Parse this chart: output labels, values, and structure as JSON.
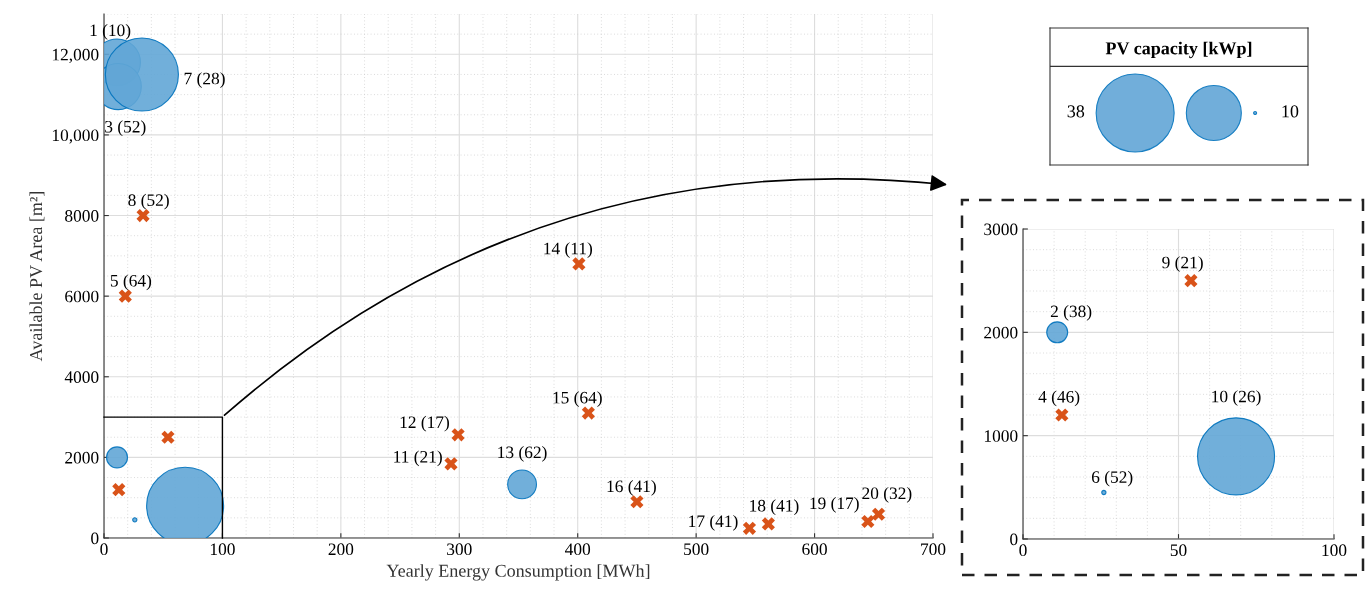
{
  "chart_data": [
    {
      "type": "bubble",
      "xlabel": "Yearly Energy Consumption [MWh]",
      "ylabel": "Available PV Area [m²]",
      "xlim": [
        0,
        700
      ],
      "xticks": [
        0,
        100,
        200,
        300,
        400,
        500,
        600,
        700
      ],
      "ylim": [
        0,
        13000
      ],
      "yticks": [
        0,
        2000,
        4000,
        6000,
        8000,
        {
          "value": 10000,
          "label": "10,000"
        },
        {
          "value": 12000,
          "label": "12,000"
        }
      ],
      "grid": true,
      "series": [
        {
          "type": "bubble",
          "color": "#62a6d6",
          "x": [
            11,
            12,
            32,
            11,
            26,
            68.5,
            353
          ],
          "values": [
            11800,
            11200,
            11500,
            2000,
            450,
            800,
            1330
          ],
          "sizes": [
            0.37,
            0.36,
            0.9,
            0.074,
            0.003,
            1,
            0.14
          ]
        },
        {
          "type": "scatter",
          "marker": "cross",
          "color": "#d95319",
          "x": [
            33,
            18,
            54,
            12.5,
            401,
            409,
            299,
            293,
            450,
            545,
            561,
            645,
            654
          ],
          "values": [
            8000,
            6000,
            2500,
            1200,
            6800,
            3100,
            2560,
            1840,
            900,
            240,
            350,
            410,
            590
          ]
        }
      ],
      "annotations": [
        {
          "text": "1 (10)",
          "x": 11,
          "y": 11800
        },
        {
          "text": "7 (28)",
          "x": 32,
          "y": 11500
        },
        {
          "text": "3 (52)",
          "x": 12,
          "y": 11200
        },
        {
          "text": "8 (52)",
          "x": 33,
          "y": 8000
        },
        {
          "text": "5 (64)",
          "x": 18,
          "y": 6000
        },
        {
          "text": "14 (11)",
          "x": 401,
          "y": 6800
        },
        {
          "text": "15 (64)",
          "x": 409,
          "y": 3100
        },
        {
          "text": "12 (17)",
          "x": 299,
          "y": 2560
        },
        {
          "text": "11 (21)",
          "x": 293,
          "y": 1840
        },
        {
          "text": "13 (62)",
          "x": 353,
          "y": 1330
        },
        {
          "text": "16 (41)",
          "x": 450,
          "y": 900
        },
        {
          "text": "17 (41)",
          "x": 545,
          "y": 240
        },
        {
          "text": "18 (41)",
          "x": 561,
          "y": 350
        },
        {
          "text": "19 (17)",
          "x": 645,
          "y": 410
        },
        {
          "text": "20 (32)",
          "x": 654,
          "y": 590
        }
      ]
    },
    {
      "type": "bubble",
      "xlim": [
        0,
        100
      ],
      "xticks": [
        0,
        50,
        100
      ],
      "ylim": [
        0,
        3000
      ],
      "yticks": [
        0,
        1000,
        2000,
        3000
      ],
      "grid": true,
      "series": [
        {
          "type": "bubble",
          "color": "#62a6d6",
          "x": [
            11,
            26,
            68.5
          ],
          "values": [
            2000,
            450,
            800
          ],
          "sizes": [
            0.074,
            0.003,
            1
          ]
        },
        {
          "type": "scatter",
          "marker": "cross",
          "color": "#d95319",
          "x": [
            54,
            12.5
          ],
          "values": [
            2500,
            1200
          ]
        }
      ],
      "annotations": [
        {
          "text": "2 (38)",
          "x": 11,
          "y": 2000
        },
        {
          "text": "6 (52)",
          "x": 26,
          "y": 450
        },
        {
          "text": "10 (26)",
          "x": 68.5,
          "y": 800
        },
        {
          "text": "9 (21)",
          "x": 54,
          "y": 2500
        },
        {
          "text": "4 (46)",
          "x": 12.5,
          "y": 1200
        }
      ]
    },
    {
      "type": "other",
      "title": "PV capacity [kWp]",
      "annotations": [
        "38",
        "10"
      ]
    }
  ]
}
